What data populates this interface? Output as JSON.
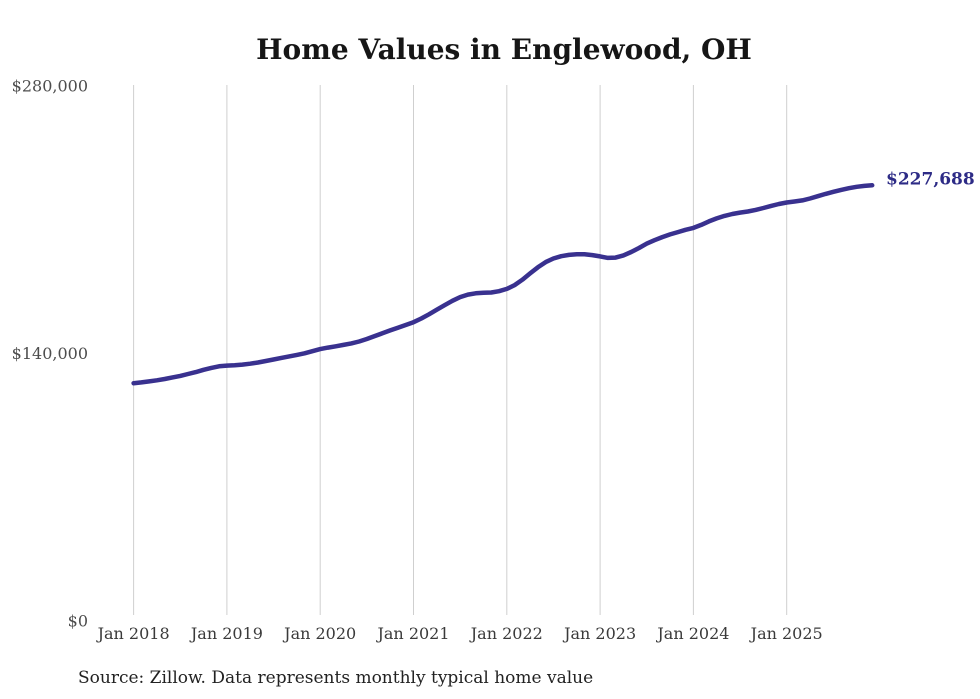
{
  "chart_data": {
    "type": "line",
    "title": "Home Values in Englewood, OH",
    "series_name": "Monthly typical home value",
    "unit": "USD",
    "source_note": "Source: Zillow. Data represents monthly typical home value",
    "start_month": "Jan 2018",
    "end_month": "Dec 2025",
    "points_per_year": 12,
    "x_tick_labels": [
      "Jan 2018",
      "Jan 2019",
      "Jan 2020",
      "Jan 2021",
      "Jan 2022",
      "Jan 2023",
      "Jan 2024",
      "Jan 2025"
    ],
    "y_ticks": [
      {
        "label": "$0",
        "value": 0
      },
      {
        "label": "$140,000",
        "value": 140000
      },
      {
        "label": "$280,000",
        "value": 280000
      }
    ],
    "ylim": [
      0,
      280000
    ],
    "grid": "vertical-only",
    "legend": "none",
    "end_label": "$227,688",
    "end_value": 227688,
    "values": [
      124200,
      124600,
      125100,
      125700,
      126400,
      127200,
      128000,
      129000,
      130000,
      131200,
      132200,
      133000,
      133400,
      133600,
      133900,
      134400,
      135000,
      135800,
      136600,
      137400,
      138200,
      139000,
      139800,
      140900,
      142000,
      142800,
      143500,
      144200,
      145000,
      146000,
      147300,
      148800,
      150300,
      151800,
      153200,
      154600,
      156100,
      158000,
      160200,
      162600,
      165000,
      167300,
      169200,
      170500,
      171200,
      171500,
      171600,
      172300,
      173500,
      175500,
      178300,
      181600,
      184800,
      187500,
      189400,
      190600,
      191300,
      191600,
      191600,
      191200,
      190500,
      189700,
      189900,
      191000,
      192800,
      194900,
      197200,
      199000,
      200600,
      202000,
      203200,
      204400,
      205400,
      207000,
      208800,
      210400,
      211700,
      212700,
      213400,
      214000,
      214800,
      215800,
      216900,
      217900,
      218700,
      219200,
      219800,
      220800,
      222000,
      223200,
      224300,
      225300,
      226200,
      226900,
      227400,
      227688
    ],
    "colors": {
      "line": "#39318f",
      "end_label": "#2d2b86",
      "grid": "#cfcfcf",
      "y_axis_text": "#4d4d4d",
      "x_axis_text": "#3a3a3a",
      "title_text": "#161616",
      "source_text": "#222222",
      "background": "#ffffff"
    }
  }
}
